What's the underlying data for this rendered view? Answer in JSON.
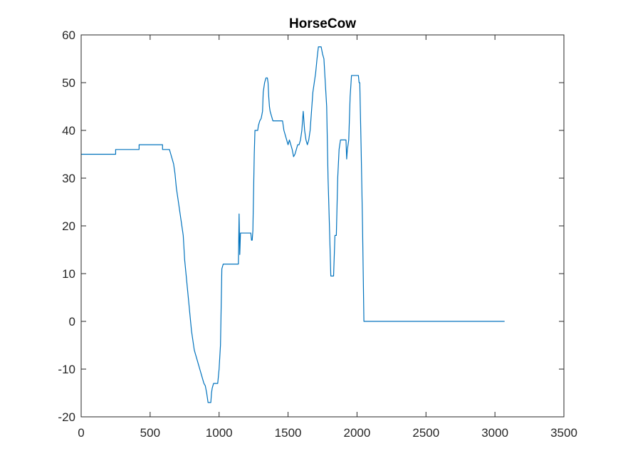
{
  "chart_data": {
    "type": "line",
    "title": "HorseCow",
    "xlabel": "",
    "ylabel": "",
    "xlim": [
      0,
      3500
    ],
    "ylim": [
      -20,
      60
    ],
    "xticks": [
      0,
      500,
      1000,
      1500,
      2000,
      2500,
      3000,
      3500
    ],
    "yticks": [
      -20,
      -10,
      0,
      10,
      20,
      30,
      40,
      50,
      60
    ],
    "xtick_labels": [
      "0",
      "500",
      "1000",
      "1500",
      "2000",
      "2500",
      "3000",
      "3500"
    ],
    "ytick_labels": [
      "-20",
      "-10",
      "0",
      "10",
      "20",
      "30",
      "40",
      "50",
      "60"
    ],
    "grid": false,
    "legend": "none",
    "colors": {
      "line": "#0072BD",
      "axes": "#262626",
      "background": "#ffffff"
    },
    "series": [
      {
        "points": [
          [
            0,
            35
          ],
          [
            250,
            35
          ],
          [
            250,
            36
          ],
          [
            420,
            36
          ],
          [
            420,
            37
          ],
          [
            590,
            37
          ],
          [
            590,
            36
          ],
          [
            640,
            36
          ],
          [
            650,
            35
          ],
          [
            660,
            34
          ],
          [
            670,
            33
          ],
          [
            680,
            31
          ],
          [
            690,
            28
          ],
          [
            700,
            26
          ],
          [
            710,
            24
          ],
          [
            720,
            22
          ],
          [
            730,
            20
          ],
          [
            740,
            18
          ],
          [
            750,
            13
          ],
          [
            760,
            10
          ],
          [
            770,
            7
          ],
          [
            780,
            4
          ],
          [
            790,
            1
          ],
          [
            800,
            -2
          ],
          [
            810,
            -4
          ],
          [
            820,
            -6
          ],
          [
            830,
            -7
          ],
          [
            840,
            -8
          ],
          [
            850,
            -9
          ],
          [
            860,
            -10
          ],
          [
            870,
            -11
          ],
          [
            880,
            -12
          ],
          [
            890,
            -13
          ],
          [
            900,
            -13.5
          ],
          [
            910,
            -15
          ],
          [
            920,
            -17
          ],
          [
            940,
            -17
          ],
          [
            945,
            -15
          ],
          [
            950,
            -14
          ],
          [
            960,
            -13
          ],
          [
            990,
            -13
          ],
          [
            1000,
            -10
          ],
          [
            1010,
            -5
          ],
          [
            1020,
            11
          ],
          [
            1030,
            12
          ],
          [
            1140,
            12
          ],
          [
            1145,
            22.5
          ],
          [
            1150,
            14
          ],
          [
            1155,
            18.5
          ],
          [
            1230,
            18.5
          ],
          [
            1235,
            17
          ],
          [
            1240,
            17
          ],
          [
            1245,
            19
          ],
          [
            1255,
            35
          ],
          [
            1260,
            40
          ],
          [
            1280,
            40
          ],
          [
            1285,
            41
          ],
          [
            1295,
            42
          ],
          [
            1305,
            42.5
          ],
          [
            1315,
            44
          ],
          [
            1320,
            48
          ],
          [
            1330,
            50
          ],
          [
            1340,
            51
          ],
          [
            1350,
            51
          ],
          [
            1355,
            50
          ],
          [
            1360,
            47
          ],
          [
            1365,
            45
          ],
          [
            1370,
            44
          ],
          [
            1380,
            43
          ],
          [
            1390,
            42
          ],
          [
            1460,
            42
          ],
          [
            1465,
            41
          ],
          [
            1470,
            40
          ],
          [
            1480,
            39
          ],
          [
            1490,
            38
          ],
          [
            1500,
            37
          ],
          [
            1510,
            38
          ],
          [
            1520,
            37
          ],
          [
            1530,
            36
          ],
          [
            1540,
            34.5
          ],
          [
            1550,
            35
          ],
          [
            1560,
            36
          ],
          [
            1570,
            37
          ],
          [
            1580,
            37
          ],
          [
            1590,
            38
          ],
          [
            1600,
            40
          ],
          [
            1610,
            44
          ],
          [
            1620,
            40
          ],
          [
            1630,
            38
          ],
          [
            1640,
            37
          ],
          [
            1650,
            38
          ],
          [
            1660,
            40
          ],
          [
            1670,
            44
          ],
          [
            1680,
            48
          ],
          [
            1690,
            50
          ],
          [
            1700,
            52
          ],
          [
            1710,
            55
          ],
          [
            1720,
            57.5
          ],
          [
            1740,
            57.5
          ],
          [
            1750,
            56
          ],
          [
            1760,
            55
          ],
          [
            1770,
            50
          ],
          [
            1780,
            45
          ],
          [
            1790,
            30
          ],
          [
            1800,
            20
          ],
          [
            1810,
            9.5
          ],
          [
            1830,
            9.5
          ],
          [
            1840,
            18
          ],
          [
            1850,
            18
          ],
          [
            1860,
            30
          ],
          [
            1870,
            36
          ],
          [
            1880,
            38
          ],
          [
            1920,
            38
          ],
          [
            1925,
            34
          ],
          [
            1930,
            36
          ],
          [
            1940,
            38
          ],
          [
            1950,
            47
          ],
          [
            1960,
            51.5
          ],
          [
            2010,
            51.5
          ],
          [
            2015,
            50
          ],
          [
            2020,
            50
          ],
          [
            2030,
            36
          ],
          [
            2040,
            20
          ],
          [
            2050,
            0
          ],
          [
            3070,
            0
          ]
        ]
      }
    ]
  }
}
